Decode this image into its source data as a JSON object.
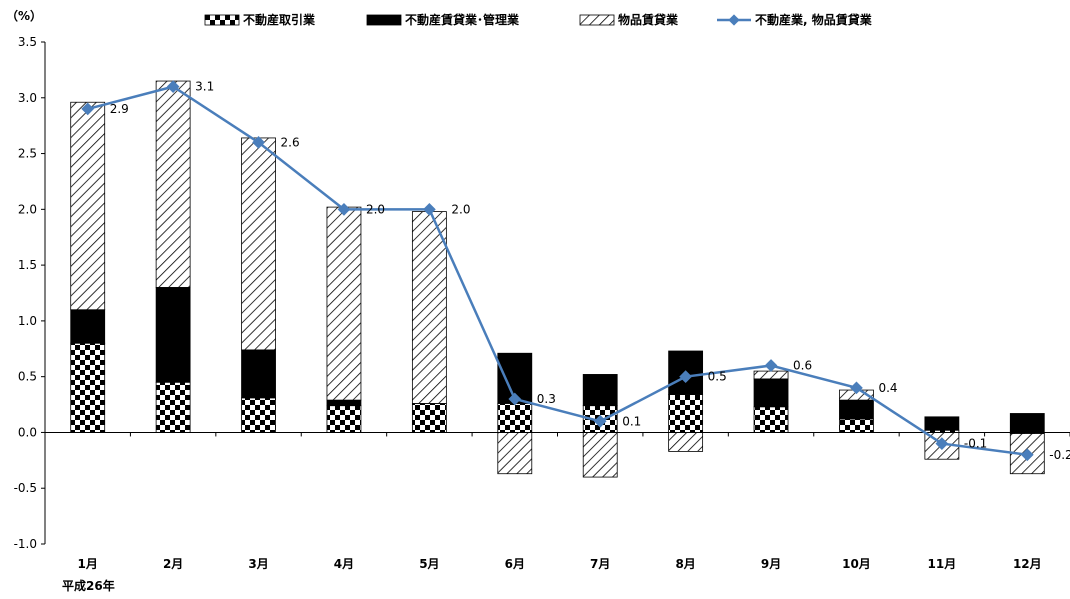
{
  "chart_data": {
    "type": "bar",
    "unit_label": "（%）",
    "year_label": "平成26年",
    "categories": [
      "1月",
      "2月",
      "3月",
      "4月",
      "5月",
      "6月",
      "7月",
      "8月",
      "9月",
      "10月",
      "11月",
      "12月"
    ],
    "ylim": [
      -1.0,
      3.5
    ],
    "yticks": [
      "3.5",
      "3.0",
      "2.5",
      "2.0",
      "1.5",
      "1.0",
      "0.5",
      "0.0",
      "-0.5",
      "-1.0"
    ],
    "ytick_values": [
      3.5,
      3.0,
      2.5,
      2.0,
      1.5,
      1.0,
      0.5,
      0.0,
      -0.5,
      -1.0
    ],
    "grid": false,
    "legend_position": "top",
    "series": [
      {
        "name": "不動産取引業",
        "kind": "stacked-bar",
        "pattern": "checker",
        "values": [
          0.8,
          0.45,
          0.31,
          0.24,
          0.26,
          0.26,
          0.24,
          0.34,
          0.23,
          0.12,
          0.02,
          -0.01
        ]
      },
      {
        "name": "不動産賃貸業･管理業",
        "kind": "stacked-bar",
        "pattern": "solid",
        "values": [
          0.3,
          0.85,
          0.43,
          0.05,
          0.0,
          0.45,
          0.28,
          0.39,
          0.25,
          0.17,
          0.12,
          0.17
        ]
      },
      {
        "name": "物品賃貸業",
        "kind": "stacked-bar",
        "pattern": "hatch",
        "values": [
          1.86,
          1.85,
          1.9,
          1.73,
          1.72,
          -0.37,
          -0.4,
          -0.17,
          0.07,
          0.09,
          -0.24,
          -0.36
        ]
      },
      {
        "name": "不動産業, 物品賃貸業",
        "kind": "line",
        "color": "#4a7ebb",
        "values": [
          2.9,
          3.1,
          2.6,
          2.0,
          2.0,
          0.3,
          0.1,
          0.5,
          0.6,
          0.4,
          -0.1,
          -0.2
        ],
        "labels": [
          "2.9",
          "3.1",
          "2.6",
          "2.0",
          "2.0",
          "0.3",
          "0.1",
          "0.5",
          "0.6",
          "0.4",
          "-0.1",
          "-0.2"
        ]
      }
    ],
    "colors": {
      "line": "#4a7ebb",
      "bar_fill": "#000000",
      "axis": "#000000"
    }
  }
}
